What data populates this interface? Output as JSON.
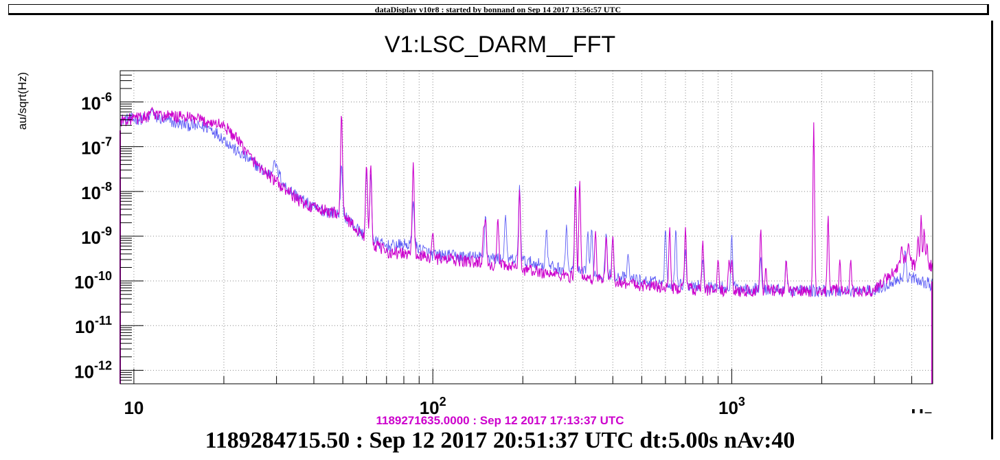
{
  "banner": {
    "text": "dataDisplay v10r8 : started by bonnand on Sep 14 2017 13:56:57 UTC"
  },
  "footer": {
    "reference_time": "1189271635.0000 : Sep 12 2017 17:13:37 UTC",
    "main_time": "1189284715.50 : Sep 12 2017 20:51:37 UTC dt:5.00s nAv:40"
  },
  "colors": {
    "current": "#5b5bf5",
    "reference": "#cc00cc",
    "grid": "#888888",
    "axis": "#000000"
  },
  "chart_data": {
    "type": "line",
    "title": "V1:LSC_DARM__FFT",
    "xlabel": "Hz",
    "ylabel": "au/sqrt(Hz)",
    "xscale": "log",
    "yscale": "log",
    "xlim": [
      9,
      4700
    ],
    "ylim": [
      5e-13,
      5e-06
    ],
    "grid": true,
    "xticks": [
      {
        "value": 10,
        "base": "10",
        "exp": ""
      },
      {
        "value": 100,
        "base": "10",
        "exp": "2"
      },
      {
        "value": 1000,
        "base": "10",
        "exp": "3"
      }
    ],
    "yticks": [
      {
        "value": 1e-12,
        "base": "10",
        "exp": "-12"
      },
      {
        "value": 1e-11,
        "base": "10",
        "exp": "-11"
      },
      {
        "value": 1e-10,
        "base": "10",
        "exp": "-10"
      },
      {
        "value": 1e-09,
        "base": "10",
        "exp": "-9"
      },
      {
        "value": 1e-08,
        "base": "10",
        "exp": "-8"
      },
      {
        "value": 1e-07,
        "base": "10",
        "exp": "-7"
      },
      {
        "value": 1e-06,
        "base": "10",
        "exp": "-6"
      }
    ],
    "series": [
      {
        "key": "current",
        "color": "#5b5bf5",
        "baseline": [
          [
            9,
            4e-07
          ],
          [
            12,
            4.4e-07
          ],
          [
            14,
            3.3e-07
          ],
          [
            16,
            2.9e-07
          ],
          [
            18,
            2.6e-07
          ],
          [
            20,
            1.5e-07
          ],
          [
            22,
            8e-08
          ],
          [
            25,
            4.5e-08
          ],
          [
            28,
            2.4e-08
          ],
          [
            30,
            3.2e-08
          ],
          [
            32,
            1.3e-08
          ],
          [
            36,
            7e-09
          ],
          [
            40,
            4.2e-09
          ],
          [
            45,
            3.5e-09
          ],
          [
            50,
            3.2e-09
          ],
          [
            55,
            1.6e-09
          ],
          [
            60,
            9e-10
          ],
          [
            70,
            6e-10
          ],
          [
            85,
            6.5e-10
          ],
          [
            100,
            3.8e-10
          ],
          [
            150,
            3.3e-10
          ],
          [
            200,
            2.8e-10
          ],
          [
            300,
            1.6e-10
          ],
          [
            400,
            1.3e-10
          ],
          [
            500,
            1e-10
          ],
          [
            700,
            8e-11
          ],
          [
            1000,
            7e-11
          ],
          [
            1300,
            6.5e-11
          ],
          [
            2000,
            6e-11
          ],
          [
            3000,
            6e-11
          ],
          [
            3800,
            1.3e-10
          ],
          [
            4300,
            1e-10
          ],
          [
            4700,
            8e-11
          ]
        ],
        "peaks": [
          [
            11.5,
            7e-07
          ],
          [
            29.5,
            5e-08
          ],
          [
            49.5,
            4e-08
          ],
          [
            60,
            3e-08
          ],
          [
            62,
            2.5e-08
          ],
          [
            86,
            6e-09
          ],
          [
            150,
            3e-09
          ],
          [
            175,
            3e-09
          ],
          [
            195,
            1.4e-08
          ],
          [
            240,
            1.5e-09
          ],
          [
            280,
            1.8e-09
          ],
          [
            300,
            1.6e-08
          ],
          [
            330,
            1.3e-09
          ],
          [
            340,
            1.5e-09
          ],
          [
            380,
            1.2e-09
          ],
          [
            400,
            1e-09
          ],
          [
            450,
            4e-10
          ],
          [
            600,
            1.5e-09
          ],
          [
            650,
            1.5e-09
          ],
          [
            700,
            5e-10
          ],
          [
            800,
            3e-10
          ],
          [
            1000,
            1.1e-09
          ],
          [
            1250,
            3.5e-10
          ],
          [
            1520,
            3e-10
          ],
          [
            3800,
            5e-10
          ]
        ]
      },
      {
        "key": "reference",
        "color": "#cc00cc",
        "baseline": [
          [
            9,
            3.8e-07
          ],
          [
            12,
            5e-07
          ],
          [
            15,
            4.5e-07
          ],
          [
            18,
            3.5e-07
          ],
          [
            20,
            3e-07
          ],
          [
            22,
            1.5e-07
          ],
          [
            25,
            5e-08
          ],
          [
            28,
            2.4e-08
          ],
          [
            32,
            1.1e-08
          ],
          [
            36,
            6e-09
          ],
          [
            40,
            4.2e-09
          ],
          [
            45,
            3.5e-09
          ],
          [
            50,
            3.2e-09
          ],
          [
            55,
            1.5e-09
          ],
          [
            60,
            8e-10
          ],
          [
            70,
            4.5e-10
          ],
          [
            85,
            3.8e-10
          ],
          [
            100,
            3.2e-10
          ],
          [
            150,
            2.5e-10
          ],
          [
            200,
            1.8e-10
          ],
          [
            300,
            1.2e-10
          ],
          [
            400,
            1e-10
          ],
          [
            500,
            8e-11
          ],
          [
            700,
            6.5e-11
          ],
          [
            1000,
            6e-11
          ],
          [
            1300,
            6e-11
          ],
          [
            2000,
            6e-11
          ],
          [
            3000,
            6e-11
          ],
          [
            3800,
            3e-10
          ],
          [
            4300,
            1.8e-10
          ],
          [
            4700,
            2.2e-10
          ]
        ],
        "peaks": [
          [
            11.5,
            7.5e-07
          ],
          [
            49.5,
            5.5e-07
          ],
          [
            60,
            4e-08
          ],
          [
            62,
            4e-08
          ],
          [
            86,
            4.5e-08
          ],
          [
            100,
            1.2e-09
          ],
          [
            148,
            1.5e-09
          ],
          [
            150,
            2.5e-09
          ],
          [
            165,
            2.5e-09
          ],
          [
            195,
            1.1e-08
          ],
          [
            300,
            1.5e-08
          ],
          [
            310,
            1.8e-08
          ],
          [
            350,
            1.3e-09
          ],
          [
            380,
            1e-09
          ],
          [
            400,
            1e-09
          ],
          [
            620,
            1.6e-09
          ],
          [
            700,
            1.6e-09
          ],
          [
            800,
            8e-10
          ],
          [
            900,
            3e-10
          ],
          [
            980,
            3e-10
          ],
          [
            1000,
            3e-10
          ],
          [
            1250,
            1.5e-09
          ],
          [
            1300,
            2e-10
          ],
          [
            1520,
            3e-10
          ],
          [
            1880,
            3.5e-07
          ],
          [
            2100,
            3e-09
          ],
          [
            2300,
            3e-10
          ],
          [
            2500,
            3e-10
          ],
          [
            3700,
            6e-10
          ],
          [
            3900,
            7e-10
          ],
          [
            4200,
            1e-09
          ],
          [
            4300,
            3e-09
          ],
          [
            4400,
            1.5e-09
          ],
          [
            4500,
            7e-10
          ]
        ]
      }
    ]
  }
}
